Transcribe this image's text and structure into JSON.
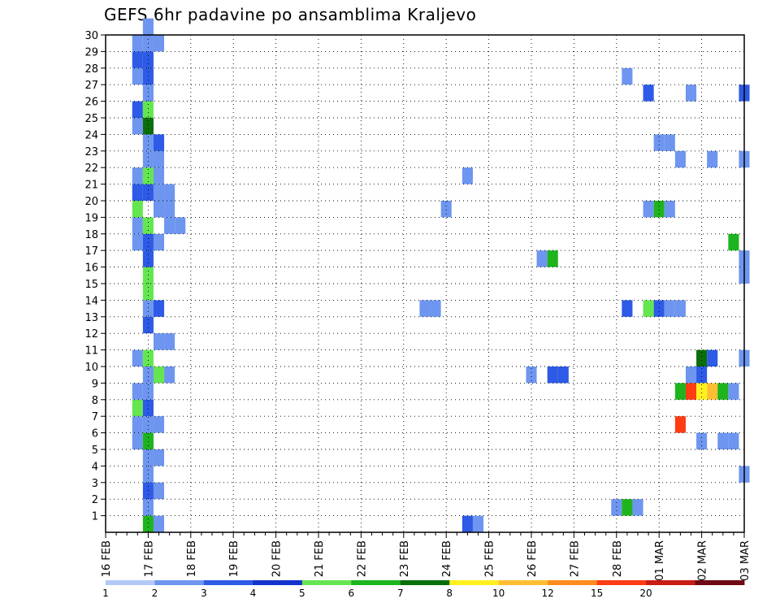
{
  "chart_data": {
    "type": "heatmap",
    "title": "GEFS 6hr padavine po ansamblima Kraljevo",
    "xlabel": "",
    "ylabel": "",
    "x_ticks": [
      "16 FEB",
      "17 FEB",
      "18 FEB",
      "19 FEB",
      "20 FEB",
      "21 FEB",
      "22 FEB",
      "23 FEB",
      "24 FEB",
      "25 FEB",
      "26 FEB",
      "27 FEB",
      "28 FEB",
      "01 MAR",
      "02 MAR",
      "03 MAR"
    ],
    "x_range_days": [
      0,
      15
    ],
    "x_step_hours": 6,
    "y_ticks": [
      1,
      2,
      3,
      4,
      5,
      6,
      7,
      8,
      9,
      10,
      11,
      12,
      13,
      14,
      15,
      16,
      17,
      18,
      19,
      20,
      21,
      22,
      23,
      24,
      25,
      26,
      27,
      28,
      29,
      30
    ],
    "y_range": [
      0,
      30
    ],
    "grid": true,
    "legend": {
      "placement": "bottom",
      "labels": [
        "1",
        "2",
        "3",
        "4",
        "5",
        "6",
        "7",
        "8",
        "10",
        "12",
        "15",
        "20"
      ],
      "colors": [
        "#b4c8f8",
        "#6e96f0",
        "#2d5ae6",
        "#1432cc",
        "#64e650",
        "#1eb41e",
        "#0a6e0a",
        "#fff01e",
        "#ffbe32",
        "#ff8c1e",
        "#ff3c14",
        "#c81e14",
        "#6e0a14"
      ]
    },
    "cells": [
      {
        "t": 4,
        "m": 0,
        "c": 5
      },
      {
        "t": 5,
        "m": 0,
        "c": 1
      },
      {
        "t": 4,
        "m": 1,
        "c": 1
      },
      {
        "t": 4,
        "m": 2,
        "c": 2
      },
      {
        "t": 5,
        "m": 2,
        "c": 1
      },
      {
        "t": 4,
        "m": 3,
        "c": 1
      },
      {
        "t": 4,
        "m": 4,
        "c": 1
      },
      {
        "t": 5,
        "m": 4,
        "c": 1
      },
      {
        "t": 3,
        "m": 5,
        "c": 1
      },
      {
        "t": 4,
        "m": 5,
        "c": 5
      },
      {
        "t": 3,
        "m": 6,
        "c": 1
      },
      {
        "t": 4,
        "m": 6,
        "c": 1
      },
      {
        "t": 5,
        "m": 6,
        "c": 1
      },
      {
        "t": 3,
        "m": 7,
        "c": 4
      },
      {
        "t": 4,
        "m": 7,
        "c": 2
      },
      {
        "t": 3,
        "m": 8,
        "c": 1
      },
      {
        "t": 4,
        "m": 8,
        "c": 1
      },
      {
        "t": 4,
        "m": 9,
        "c": 1
      },
      {
        "t": 5,
        "m": 9,
        "c": 4
      },
      {
        "t": 6,
        "m": 9,
        "c": 1
      },
      {
        "t": 3,
        "m": 10,
        "c": 1
      },
      {
        "t": 4,
        "m": 10,
        "c": 4
      },
      {
        "t": 5,
        "m": 11,
        "c": 1
      },
      {
        "t": 6,
        "m": 11,
        "c": 1
      },
      {
        "t": 4,
        "m": 12,
        "c": 2
      },
      {
        "t": 4,
        "m": 13,
        "c": 1
      },
      {
        "t": 5,
        "m": 13,
        "c": 2
      },
      {
        "t": 4,
        "m": 14,
        "c": 4
      },
      {
        "t": 4,
        "m": 15,
        "c": 4
      },
      {
        "t": 4,
        "m": 16,
        "c": 2
      },
      {
        "t": 3,
        "m": 17,
        "c": 1
      },
      {
        "t": 4,
        "m": 17,
        "c": 2
      },
      {
        "t": 5,
        "m": 17,
        "c": 1
      },
      {
        "t": 3,
        "m": 18,
        "c": 1
      },
      {
        "t": 4,
        "m": 18,
        "c": 4
      },
      {
        "t": 6,
        "m": 18,
        "c": 1
      },
      {
        "t": 7,
        "m": 18,
        "c": 1
      },
      {
        "t": 3,
        "m": 19,
        "c": 4
      },
      {
        "t": 5,
        "m": 19,
        "c": 1
      },
      {
        "t": 6,
        "m": 19,
        "c": 1
      },
      {
        "t": 3,
        "m": 20,
        "c": 2
      },
      {
        "t": 4,
        "m": 20,
        "c": 2
      },
      {
        "t": 5,
        "m": 20,
        "c": 1
      },
      {
        "t": 6,
        "m": 20,
        "c": 1
      },
      {
        "t": 3,
        "m": 21,
        "c": 1
      },
      {
        "t": 4,
        "m": 21,
        "c": 4
      },
      {
        "t": 5,
        "m": 21,
        "c": 1
      },
      {
        "t": 4,
        "m": 22,
        "c": 1
      },
      {
        "t": 5,
        "m": 22,
        "c": 1
      },
      {
        "t": 4,
        "m": 23,
        "c": 1
      },
      {
        "t": 5,
        "m": 23,
        "c": 2
      },
      {
        "t": 3,
        "m": 24,
        "c": 1
      },
      {
        "t": 4,
        "m": 24,
        "c": 6
      },
      {
        "t": 3,
        "m": 25,
        "c": 2
      },
      {
        "t": 4,
        "m": 25,
        "c": 4
      },
      {
        "t": 4,
        "m": 26,
        "c": 1
      },
      {
        "t": 3,
        "m": 27,
        "c": 1
      },
      {
        "t": 4,
        "m": 27,
        "c": 2
      },
      {
        "t": 3,
        "m": 28,
        "c": 2
      },
      {
        "t": 4,
        "m": 28,
        "c": 2
      },
      {
        "t": 3,
        "m": 29,
        "c": 1
      },
      {
        "t": 4,
        "m": 29,
        "c": 1
      },
      {
        "t": 5,
        "m": 29,
        "c": 1
      },
      {
        "t": 4,
        "m": 30,
        "c": 1
      },
      {
        "t": 30,
        "m": 13,
        "c": 1
      },
      {
        "t": 31,
        "m": 13,
        "c": 1
      },
      {
        "t": 32,
        "m": 19,
        "c": 1
      },
      {
        "t": 34,
        "m": 0,
        "c": 2
      },
      {
        "t": 35,
        "m": 0,
        "c": 1
      },
      {
        "t": 34,
        "m": 21,
        "c": 1
      },
      {
        "t": 40,
        "m": 9,
        "c": 1
      },
      {
        "t": 41,
        "m": 16,
        "c": 1
      },
      {
        "t": 42,
        "m": 16,
        "c": 5
      },
      {
        "t": 42,
        "m": 9,
        "c": 2
      },
      {
        "t": 43,
        "m": 9,
        "c": 2
      },
      {
        "t": 48,
        "m": 1,
        "c": 1
      },
      {
        "t": 49,
        "m": 1,
        "c": 5
      },
      {
        "t": 50,
        "m": 1,
        "c": 1
      },
      {
        "t": 49,
        "m": 13,
        "c": 2
      },
      {
        "t": 49,
        "m": 27,
        "c": 1
      },
      {
        "t": 51,
        "m": 19,
        "c": 1
      },
      {
        "t": 52,
        "m": 19,
        "c": 5
      },
      {
        "t": 53,
        "m": 19,
        "c": 1
      },
      {
        "t": 51,
        "m": 13,
        "c": 4
      },
      {
        "t": 52,
        "m": 13,
        "c": 2
      },
      {
        "t": 53,
        "m": 13,
        "c": 1
      },
      {
        "t": 54,
        "m": 13,
        "c": 1
      },
      {
        "t": 51,
        "m": 26,
        "c": 2
      },
      {
        "t": 52,
        "m": 23,
        "c": 1
      },
      {
        "t": 53,
        "m": 23,
        "c": 1
      },
      {
        "t": 54,
        "m": 22,
        "c": 1
      },
      {
        "t": 55,
        "m": 26,
        "c": 1
      },
      {
        "t": 55,
        "m": 9,
        "c": 1
      },
      {
        "t": 56,
        "m": 9,
        "c": 2
      },
      {
        "t": 56,
        "m": 10,
        "c": 6
      },
      {
        "t": 57,
        "m": 10,
        "c": 2
      },
      {
        "t": 54,
        "m": 6,
        "c": 10
      },
      {
        "t": 56,
        "m": 5,
        "c": 1
      },
      {
        "t": 54,
        "m": 8,
        "c": 5
      },
      {
        "t": 55,
        "m": 8,
        "c": 10
      },
      {
        "t": 56,
        "m": 8,
        "c": 7
      },
      {
        "t": 57,
        "m": 8,
        "c": 8
      },
      {
        "t": 58,
        "m": 8,
        "c": 5
      },
      {
        "t": 59,
        "m": 8,
        "c": 1
      },
      {
        "t": 57,
        "m": 22,
        "c": 1
      },
      {
        "t": 58,
        "m": 5,
        "c": 1
      },
      {
        "t": 59,
        "m": 5,
        "c": 1
      },
      {
        "t": 59,
        "m": 17,
        "c": 5
      },
      {
        "t": 60,
        "m": 26,
        "c": 2
      },
      {
        "t": 60,
        "m": 22,
        "c": 1
      },
      {
        "t": 60,
        "m": 16,
        "c": 1
      },
      {
        "t": 60,
        "m": 15,
        "c": 1
      },
      {
        "t": 60,
        "m": 10,
        "c": 1
      },
      {
        "t": 60,
        "m": 3,
        "c": 1
      }
    ]
  }
}
